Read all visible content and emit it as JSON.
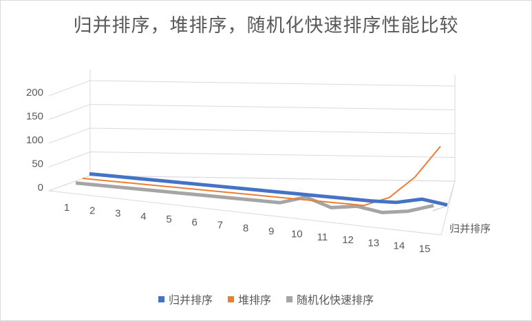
{
  "chart_data": {
    "type": "line",
    "variant": "3d-line",
    "title": "归并排序，堆排序，随机化快速排序性能比较",
    "categories": [
      "1",
      "2",
      "3",
      "4",
      "5",
      "6",
      "7",
      "8",
      "9",
      "10",
      "11",
      "12",
      "13",
      "14",
      "15"
    ],
    "y_ticks": [
      "0",
      "50",
      "100",
      "150",
      "200"
    ],
    "ylim": [
      0,
      200
    ],
    "depth_label": "归并排序",
    "grid": true,
    "legend_position": "bottom",
    "series": [
      {
        "name": "归并排序",
        "color": "#4472c4",
        "values": [
          0,
          0,
          0,
          0,
          0,
          0,
          0,
          0,
          0,
          0,
          0,
          0,
          2,
          14,
          7
        ]
      },
      {
        "name": "堆排序",
        "color": "#ed7d31",
        "values": [
          0,
          0,
          0,
          0,
          0,
          0,
          0,
          0,
          0,
          0,
          0,
          0,
          22,
          70,
          140
        ]
      },
      {
        "name": "随机化快速排序",
        "color": "#a5a5a5",
        "values": [
          0,
          0,
          0,
          0,
          0,
          0,
          0,
          0,
          0,
          17,
          0,
          8,
          0,
          8,
          25
        ]
      }
    ]
  }
}
